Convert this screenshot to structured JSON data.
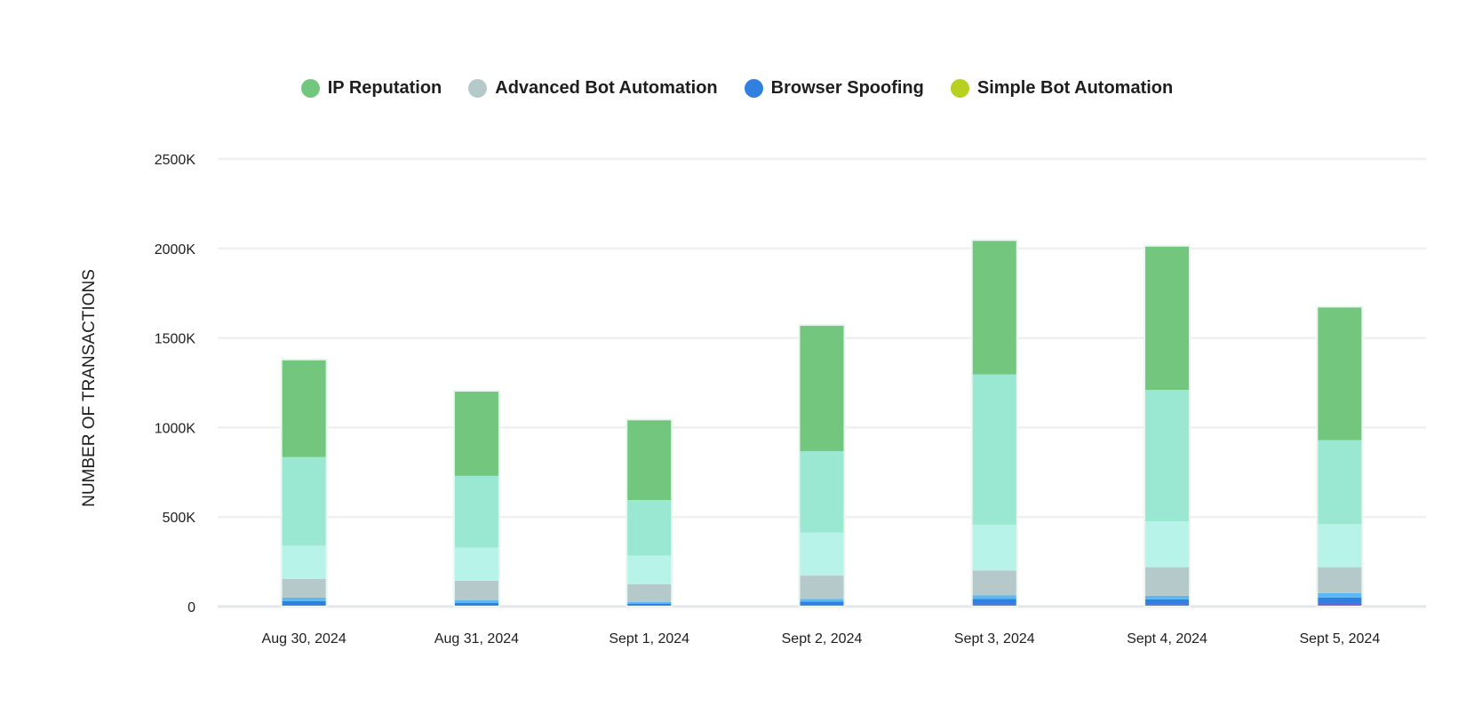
{
  "chart_data": {
    "type": "bar",
    "stacked": true,
    "title": "",
    "xlabel": "",
    "ylabel": "NUMBER OF TRANSACTIONS",
    "ylim": [
      0,
      2500
    ],
    "yticks": [
      0,
      500,
      1000,
      1500,
      2000,
      2500
    ],
    "ytick_labels": [
      "0",
      "500K",
      "1000K",
      "1500K",
      "2000K",
      "2500K"
    ],
    "grid": true,
    "legend_position": "top-center",
    "categories": [
      "Aug 30, 2024",
      "Aug 31, 2024",
      "Sept 1, 2024",
      "Sept 2, 2024",
      "Sept 3, 2024",
      "Sept 4, 2024",
      "Sept 5, 2024"
    ],
    "legend": [
      {
        "name": "IP Reputation",
        "color": "#72c67d"
      },
      {
        "name": "Advanced Bot Automation",
        "color": "#b6c9ca"
      },
      {
        "name": "Browser Spoofing",
        "color": "#2f80e0"
      },
      {
        "name": "Simple Bot Automation",
        "color": "#b8d01f"
      }
    ],
    "series": [
      {
        "color": "#7b5fd6",
        "values": [
          10,
          5,
          5,
          8,
          12,
          12,
          15
        ]
      },
      {
        "color": "#2f80e0",
        "values": [
          20,
          15,
          10,
          20,
          30,
          28,
          35
        ]
      },
      {
        "color": "#5bb8f5",
        "values": [
          20,
          15,
          10,
          15,
          20,
          20,
          25
        ]
      },
      {
        "color": "#b6c9ca",
        "values": [
          105,
          110,
          100,
          130,
          140,
          160,
          145
        ]
      },
      {
        "color": "#b8f3e9",
        "values": [
          185,
          185,
          160,
          240,
          255,
          255,
          240
        ]
      },
      {
        "color": "#9ae8d2",
        "values": [
          495,
          400,
          310,
          455,
          840,
          735,
          470
        ]
      },
      {
        "color": "#72c67d",
        "values": [
          545,
          475,
          450,
          705,
          750,
          805,
          745
        ]
      }
    ]
  }
}
